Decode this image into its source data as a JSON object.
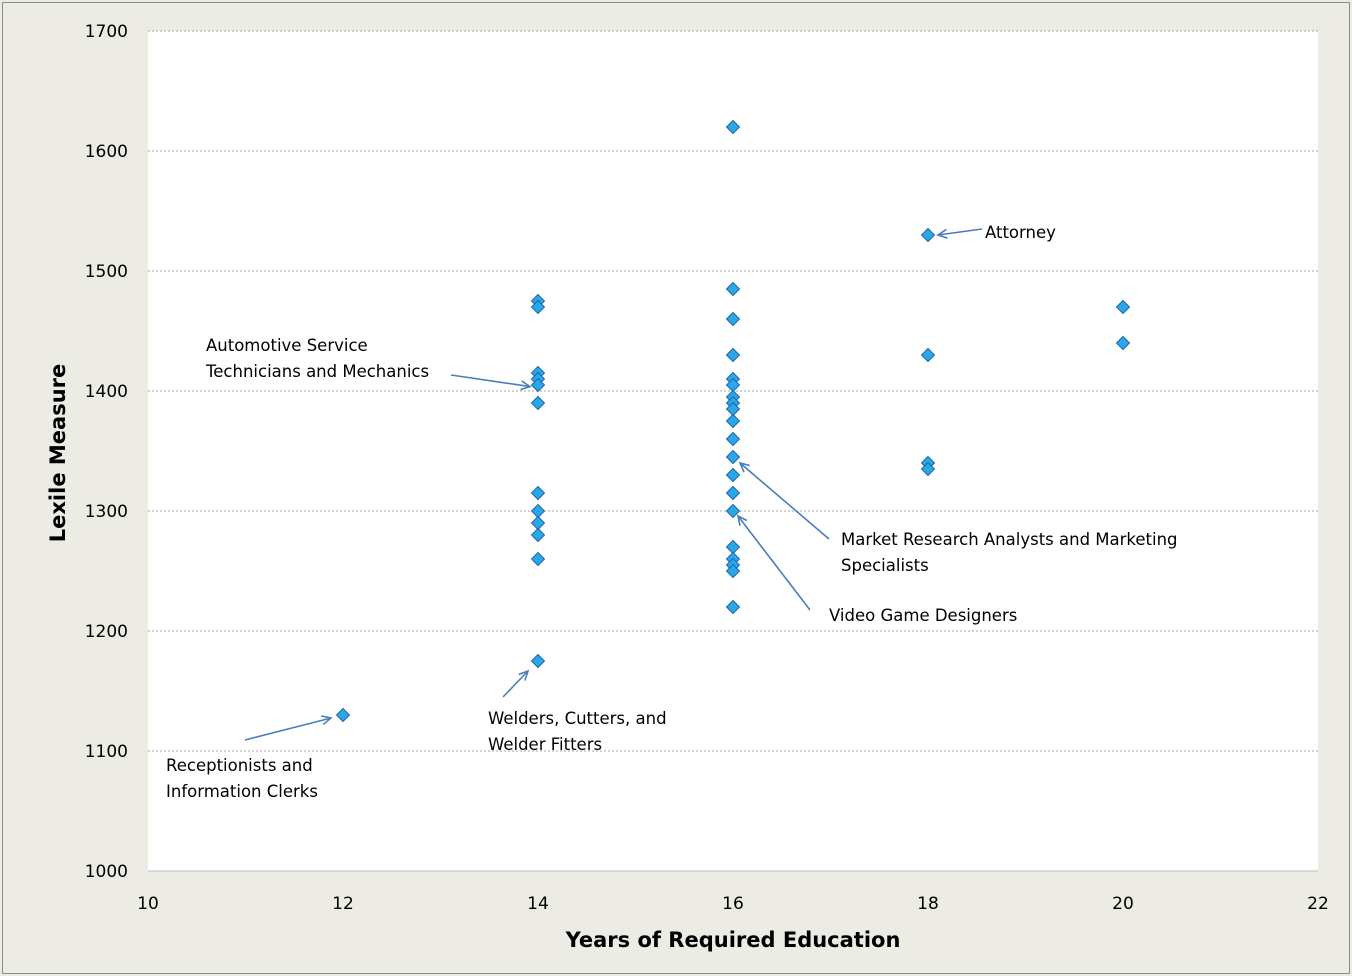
{
  "chart_data": {
    "type": "scatter",
    "title": "",
    "xlabel": "Years of Required Education",
    "ylabel": "Lexile Measure",
    "xlim": [
      10,
      22
    ],
    "ylim": [
      1000,
      1700
    ],
    "x_ticks": [
      10,
      12,
      14,
      16,
      18,
      20,
      22
    ],
    "y_ticks": [
      1000,
      1100,
      1200,
      1300,
      1400,
      1500,
      1600,
      1700
    ],
    "grid": "horizontal dashed",
    "legend": "none",
    "marker": "diamond",
    "colors": {
      "marker_fill": "#2aa7e6",
      "marker_edge": "#2266b0",
      "arrow": "#4a7ebb",
      "background": "#ecebe4",
      "plot_area": "#ffffff"
    },
    "points": [
      {
        "x": 12,
        "y": 1130
      },
      {
        "x": 14,
        "y": 1475
      },
      {
        "x": 14,
        "y": 1470
      },
      {
        "x": 14,
        "y": 1415
      },
      {
        "x": 14,
        "y": 1410
      },
      {
        "x": 14,
        "y": 1405
      },
      {
        "x": 14,
        "y": 1390
      },
      {
        "x": 14,
        "y": 1315
      },
      {
        "x": 14,
        "y": 1300
      },
      {
        "x": 14,
        "y": 1290
      },
      {
        "x": 14,
        "y": 1280
      },
      {
        "x": 14,
        "y": 1260
      },
      {
        "x": 14,
        "y": 1175
      },
      {
        "x": 16,
        "y": 1620
      },
      {
        "x": 16,
        "y": 1485
      },
      {
        "x": 16,
        "y": 1460
      },
      {
        "x": 16,
        "y": 1430
      },
      {
        "x": 16,
        "y": 1410
      },
      {
        "x": 16,
        "y": 1405
      },
      {
        "x": 16,
        "y": 1395
      },
      {
        "x": 16,
        "y": 1390
      },
      {
        "x": 16,
        "y": 1385
      },
      {
        "x": 16,
        "y": 1375
      },
      {
        "x": 16,
        "y": 1360
      },
      {
        "x": 16,
        "y": 1345
      },
      {
        "x": 16,
        "y": 1330
      },
      {
        "x": 16,
        "y": 1315
      },
      {
        "x": 16,
        "y": 1300
      },
      {
        "x": 16,
        "y": 1270
      },
      {
        "x": 16,
        "y": 1260
      },
      {
        "x": 16,
        "y": 1255
      },
      {
        "x": 16,
        "y": 1250
      },
      {
        "x": 16,
        "y": 1220
      },
      {
        "x": 18,
        "y": 1530
      },
      {
        "x": 18,
        "y": 1430
      },
      {
        "x": 18,
        "y": 1340
      },
      {
        "x": 18,
        "y": 1335
      },
      {
        "x": 20,
        "y": 1470
      },
      {
        "x": 20,
        "y": 1440
      }
    ],
    "annotations": [
      {
        "lines": [
          "Attorney"
        ],
        "point": {
          "x": 18,
          "y": 1530
        }
      },
      {
        "lines": [
          "Automotive Service",
          "Technicians and Mechanics"
        ],
        "point": {
          "x": 14,
          "y": 1407
        }
      },
      {
        "lines": [
          "Market Research Analysts and Marketing",
          "Specialists"
        ],
        "point": {
          "x": 16,
          "y": 1345
        }
      },
      {
        "lines": [
          "Video Game Designers"
        ],
        "point": {
          "x": 16,
          "y": 1300
        }
      },
      {
        "lines": [
          "Welders, Cutters, and",
          "Welder Fitters"
        ],
        "point": {
          "x": 14,
          "y": 1175
        }
      },
      {
        "lines": [
          "Receptionists and",
          "Information Clerks"
        ],
        "point": {
          "x": 12,
          "y": 1130
        }
      }
    ]
  }
}
